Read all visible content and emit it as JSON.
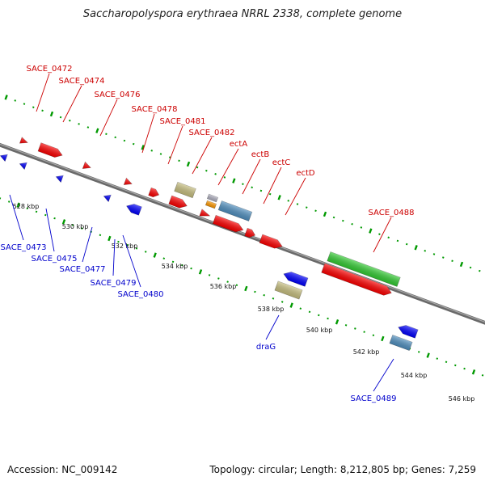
{
  "title": "Saccharopolyspora erythraea NRRL 2338, complete genome",
  "footer": {
    "accession": "Accession: NC_009142",
    "summary": "Topology: circular; Length: 8,212,805 bp; Genes: 7,259"
  },
  "colors": {
    "forward_gene": "#ff0000",
    "reverse_gene": "#0000ff",
    "forward_label": "#cc0000",
    "reverse_label": "#0000cc",
    "rrna_green": "#33cc33",
    "khaki": "#c8c080",
    "steelblue": "#5090c0",
    "orange": "#ff9900",
    "grey": "#b0b0c0",
    "tick_green": "#009900",
    "backbone": "#808080"
  },
  "ticks": [
    {
      "label": "528 kbp"
    },
    {
      "label": "530 kbp"
    },
    {
      "label": "532 kbp"
    },
    {
      "label": "534 kbp"
    },
    {
      "label": "536 kbp"
    },
    {
      "label": "538 kbp"
    },
    {
      "label": "540 kbp"
    },
    {
      "label": "542 kbp"
    },
    {
      "label": "544 kbp"
    },
    {
      "label": "546 kbp"
    }
  ],
  "forward_labels": [
    {
      "text": "SACE_0472"
    },
    {
      "text": "SACE_0474"
    },
    {
      "text": "SACE_0476"
    },
    {
      "text": "SACE_0478"
    },
    {
      "text": "SACE_0481"
    },
    {
      "text": "SACE_0482"
    },
    {
      "text": "ectA"
    },
    {
      "text": "ectB"
    },
    {
      "text": "ectC"
    },
    {
      "text": "ectD"
    },
    {
      "text": "SACE_0488"
    }
  ],
  "reverse_labels": [
    {
      "text": "SACE_0473"
    },
    {
      "text": "SACE_0475"
    },
    {
      "text": "SACE_0477"
    },
    {
      "text": "SACE_0479"
    },
    {
      "text": "SACE_0480"
    },
    {
      "text": "draG"
    },
    {
      "text": "SACE_0489"
    }
  ]
}
